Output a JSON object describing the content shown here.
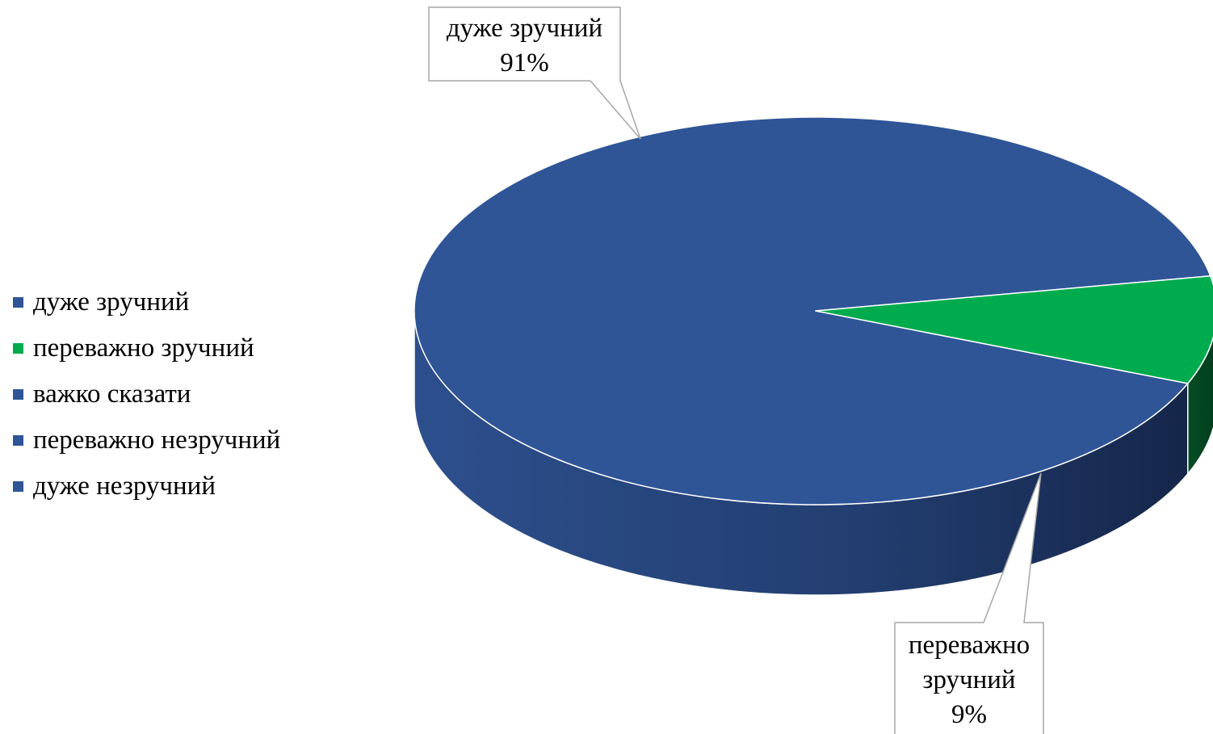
{
  "chart_data": {
    "type": "pie",
    "style": "3d",
    "categories": [
      "дуже зручний",
      "переважно зручний",
      "важко сказати",
      "переважно незручний",
      "дуже незручний"
    ],
    "values": [
      91,
      9,
      0,
      0,
      0
    ],
    "value_unit": "%",
    "colors": [
      "#2f5597",
      "#00ab4e",
      "#2f5597",
      "#2f5597",
      "#2f5597"
    ],
    "side_colors": [
      "#24437a",
      "#004420",
      "#24437a",
      "#24437a",
      "#24437a"
    ],
    "legend_position": "left",
    "labels": [
      {
        "category": "дуже зручний",
        "value": "91%"
      },
      {
        "category": "переважно зручний",
        "value": "9%"
      }
    ]
  }
}
